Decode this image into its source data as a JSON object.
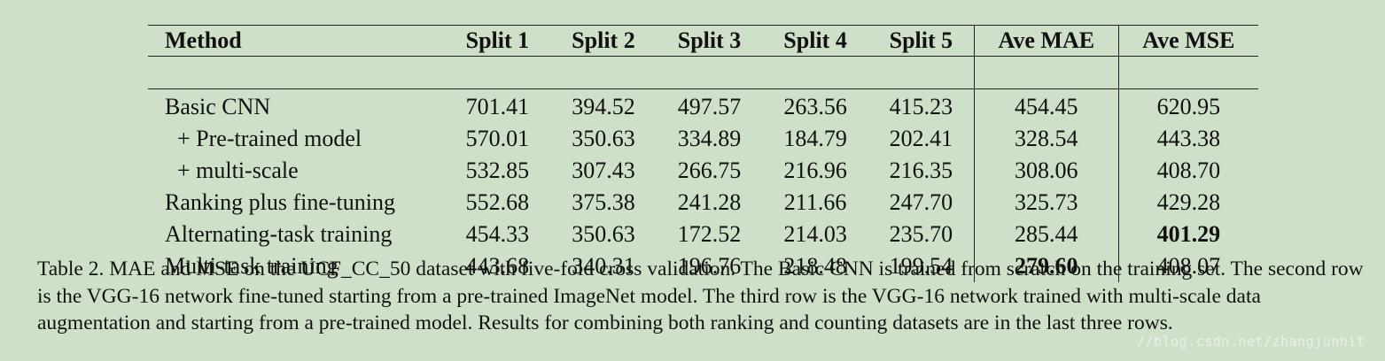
{
  "table": {
    "headers": [
      "Method",
      "Split 1",
      "Split 2",
      "Split 3",
      "Split 4",
      "Split 5",
      "Ave MAE",
      "Ave MSE"
    ],
    "rows": [
      {
        "method": "Basic CNN",
        "values": [
          "701.41",
          "394.52",
          "497.57",
          "263.56",
          "415.23",
          "454.45",
          "620.95"
        ]
      },
      {
        "method": "+ Pre-trained model",
        "values": [
          "570.01",
          "350.63",
          "334.89",
          "184.79",
          "202.41",
          "328.54",
          "443.38"
        ]
      },
      {
        "method": "+ multi-scale",
        "values": [
          "532.85",
          "307.43",
          "266.75",
          "216.96",
          "216.35",
          "308.06",
          "408.70"
        ]
      },
      {
        "method": "Ranking plus fine-tuning",
        "values": [
          "552.68",
          "375.38",
          "241.28",
          "211.66",
          "247.70",
          "325.73",
          "429.28"
        ]
      },
      {
        "method": "Alternating-task training",
        "values": [
          "454.33",
          "350.63",
          "172.52",
          "214.03",
          "235.70",
          "285.44",
          "401.29"
        ]
      },
      {
        "method": "Multi-task training",
        "values": [
          "443.68",
          "340.31",
          "196.76",
          "218.48",
          "199.54",
          "279.60",
          "408.07"
        ]
      }
    ],
    "bold_cells": [
      "row4.Ave MSE",
      "row5.Ave MAE"
    ]
  },
  "caption": "Table 2. MAE and MSE on the UCF_CC_50 dataset with five-fold cross validation. The Basic CNN is trained from scratch on the training set. The second row is the VGG-16 network fine-tuned starting from a pre-trained ImageNet model. The third row is the VGG-16 network trained with multi-scale data augmentation and starting from a pre-trained model. Results for combining both ranking and counting datasets are in the last three rows.",
  "watermark": "//blog.csdn.net/zhangjunhit"
}
